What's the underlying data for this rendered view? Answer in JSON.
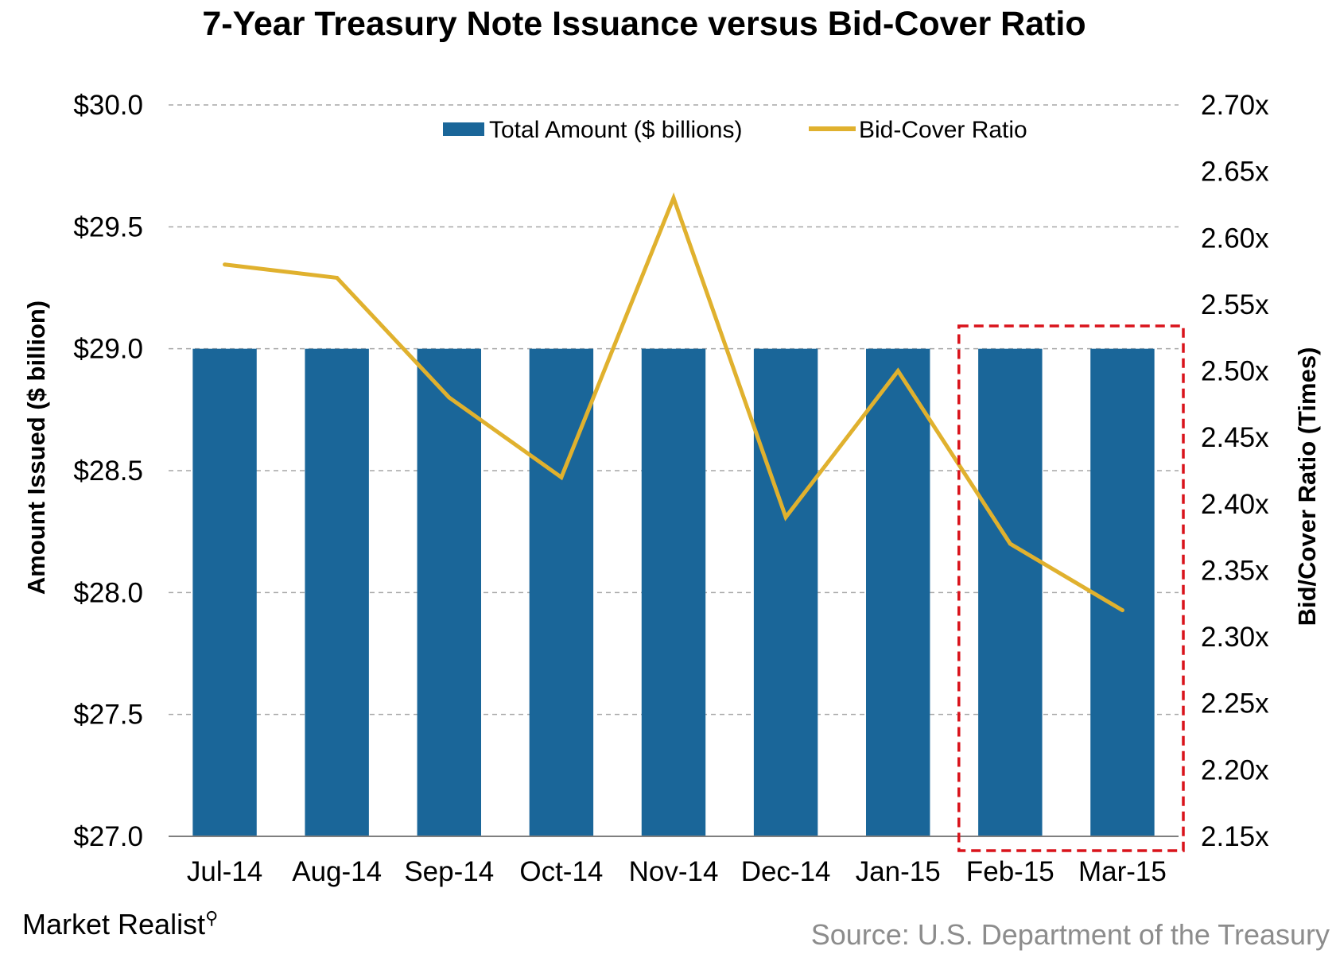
{
  "brand": {
    "name": "Market Realist",
    "logo_icon": "magnifier-chart-icon"
  },
  "source": "Source: U.S. Department of the Treasury",
  "colors": {
    "bar": "#1a6699",
    "line": "#e0b12e",
    "highlight_box": "#d9131b",
    "grid": "#a6a6a6"
  },
  "chart_data": {
    "type": "bar",
    "title": "7-Year Treasury Note Issuance versus Bid-Cover Ratio",
    "categories": [
      "Jul-14",
      "Aug-14",
      "Sep-14",
      "Oct-14",
      "Nov-14",
      "Dec-14",
      "Jan-15",
      "Feb-15",
      "Mar-15"
    ],
    "series": [
      {
        "name": "Total Amount ($ billions)",
        "type": "bar",
        "axis": "left",
        "values": [
          29.0,
          29.0,
          29.0,
          29.0,
          29.0,
          29.0,
          29.0,
          29.0,
          29.0
        ]
      },
      {
        "name": "Bid-Cover Ratio",
        "type": "line",
        "axis": "right",
        "values": [
          2.58,
          2.57,
          2.48,
          2.42,
          2.63,
          2.39,
          2.5,
          2.37,
          2.32
        ]
      }
    ],
    "ylabel": "Amount Issued ($ billion)",
    "y2label": "Bid/Cover Ratio (Times)",
    "ylim": [
      27.0,
      30.0
    ],
    "y_ticks": [
      "$27.0",
      "$27.5",
      "$28.0",
      "$28.5",
      "$29.0",
      "$29.5",
      "$30.0"
    ],
    "y2lim": [
      2.15,
      2.7
    ],
    "y2_ticks": [
      "2.15x",
      "2.20x",
      "2.25x",
      "2.30x",
      "2.35x",
      "2.40x",
      "2.45x",
      "2.50x",
      "2.55x",
      "2.60x",
      "2.65x",
      "2.70x"
    ],
    "grid": true,
    "legend": "top-center",
    "highlight": {
      "categories": [
        "Feb-15",
        "Mar-15"
      ],
      "style": "dashed-box"
    }
  }
}
